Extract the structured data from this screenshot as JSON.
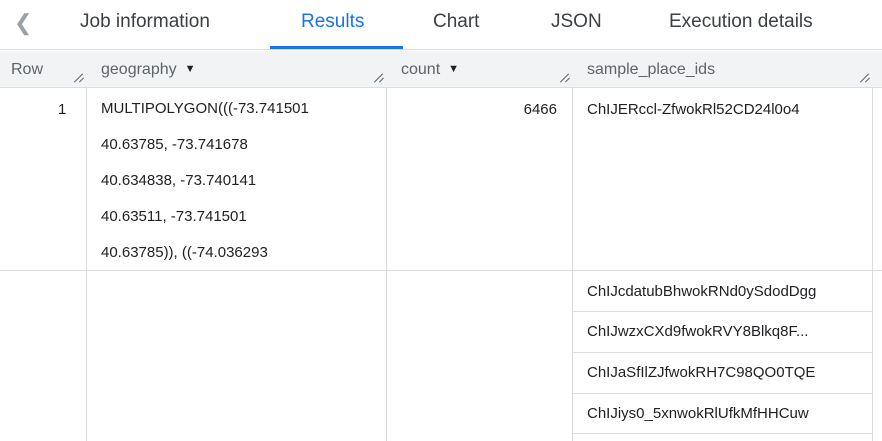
{
  "tabs": {
    "back_icon": "chevron-left-icon",
    "items": [
      "Job information",
      "Results",
      "Chart",
      "JSON",
      "Execution details"
    ],
    "active": "Results"
  },
  "columns": [
    "Row",
    "geography",
    "count",
    "sample_place_ids"
  ],
  "rows": [
    {
      "row": "1",
      "geography_lines": [
        "MULTIPOLYGON(((-73.741501",
        "40.63785, -73.741678",
        "40.634838, -73.740141",
        "40.63511, -73.741501",
        "40.63785)), ((-74.036293"
      ],
      "count": "6466",
      "sample_place_ids": [
        "ChIJERccl-ZfwokRl52CD24l0o4",
        "ChIJcdatubBhwokRNd0ySdodDgg",
        "ChIJwzxCXd9fwokRVY8Blkq8F...",
        "ChIJaSfIlZJfwokRH7C98QO0TQE",
        "ChIJiys0_5xnwokRlUfkMfHHCuw"
      ]
    }
  ],
  "colors": {
    "accent": "#1a73e8",
    "header_bg": "#f1f3f4"
  }
}
